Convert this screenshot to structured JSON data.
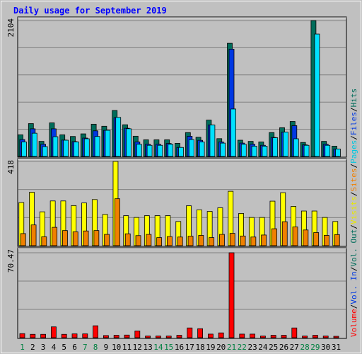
{
  "chart_data": {
    "type": "bar",
    "title": "Daily usage for September 2019",
    "categories": [
      "1",
      "2",
      "3",
      "4",
      "5",
      "6",
      "7",
      "8",
      "9",
      "10",
      "11",
      "12",
      "13",
      "14",
      "15",
      "16",
      "17",
      "18",
      "19",
      "20",
      "21",
      "22",
      "23",
      "24",
      "25",
      "26",
      "27",
      "28",
      "29",
      "30",
      "31"
    ],
    "weekend_days": [
      "1",
      "7",
      "8",
      "14",
      "15",
      "21",
      "22",
      "28",
      "29"
    ],
    "grid": true,
    "panels": [
      {
        "name": "hits-files-pages",
        "ytick_label": "2104",
        "ylim": [
          0,
          2104
        ],
        "series": [
          {
            "name": "Hits",
            "color": "#006c5a",
            "values": [
              335,
              509,
              234,
              520,
              335,
              310,
              350,
              500,
              468,
              712,
              491,
              314,
              258,
              258,
              258,
              204,
              370,
              297,
              563,
              276,
              1752,
              252,
              234,
              225,
              370,
              445,
              542,
              217,
              2104,
              234,
              160
            ]
          },
          {
            "name": "Files",
            "color": "#0038e2",
            "values": [
              262,
              428,
              189,
              428,
              254,
              230,
              285,
              397,
              405,
              600,
              437,
              225,
              189,
              189,
              201,
              140,
              313,
              250,
              487,
              225,
              1661,
              207,
              189,
              173,
              295,
              375,
              477,
              180,
              0,
              189,
              115
            ]
          },
          {
            "name": "Pages",
            "color": "#00e0ff",
            "values": [
              225,
              360,
              153,
              306,
              252,
              225,
              274,
              310,
              405,
              605,
              429,
              189,
              173,
              173,
              189,
              140,
              262,
              225,
              487,
              207,
              735,
              189,
              160,
              160,
              290,
              377,
              274,
              173,
              1895,
              173,
              115
            ]
          }
        ]
      },
      {
        "name": "visits-sites",
        "ytick_label": "418",
        "ylim": [
          0,
          418
        ],
        "series": [
          {
            "name": "Visits",
            "color": "#ffff00",
            "values": [
              214,
              265,
              168,
              222,
              222,
              199,
              212,
              229,
              155,
              418,
              149,
              140,
              149,
              149,
              149,
              120,
              198,
              178,
              170,
              188,
              270,
              160,
              140,
              140,
              221,
              263,
              195,
              172,
              172,
              140,
              120
            ]
          },
          {
            "name": "Sites",
            "color": "#f08000",
            "values": [
              60,
              103,
              44,
              91,
              75,
              69,
              73,
              75,
              56,
              233,
              59,
              50,
              56,
              40,
              45,
              43,
              47,
              51,
              40,
              56,
              61,
              48,
              43,
              53,
              84,
              119,
              93,
              78,
              65,
              51,
              55
            ]
          }
        ]
      },
      {
        "name": "volume",
        "ytick_label": "70.47",
        "ylim": [
          0,
          70.47
        ],
        "series": [
          {
            "name": "Volume",
            "color": "#ff0000",
            "values": [
              3.4,
              2.8,
              2.8,
              9.0,
              2.8,
              3.2,
              3.2,
              9.9,
              1.8,
              2.0,
              2.2,
              5.6,
              1.4,
              1.4,
              1.4,
              2.0,
              8.1,
              7.5,
              3.0,
              4.0,
              70.47,
              3.0,
              3.0,
              1.4,
              2.0,
              2.0,
              8.1,
              1.4,
              2.0,
              1.4,
              1.0
            ]
          }
        ]
      }
    ],
    "legend_entries": [
      {
        "label": "Volume",
        "color": "#ff0000"
      },
      {
        "label": "/",
        "color": "#000000"
      },
      {
        "label": "Vol. In",
        "color": "#0038e2"
      },
      {
        "label": "/",
        "color": "#000000"
      },
      {
        "label": "Vol. Out",
        "color": "#006c5a"
      },
      {
        "label": "/",
        "color": "#000000"
      },
      {
        "label": "Visits",
        "color": "#e8e800"
      },
      {
        "label": "/",
        "color": "#000000"
      },
      {
        "label": "Sites",
        "color": "#f08000"
      },
      {
        "label": "/",
        "color": "#000000"
      },
      {
        "label": "Pages",
        "color": "#00c8e0"
      },
      {
        "label": "/",
        "color": "#000000"
      },
      {
        "label": "Files",
        "color": "#0038e2"
      },
      {
        "label": "/",
        "color": "#000000"
      },
      {
        "label": "Hits",
        "color": "#006c5a"
      }
    ],
    "legend_placement": "right-vertical",
    "colors": {
      "background": "#c0c0c0",
      "title": "#0000ff",
      "weekday_label": "#000000",
      "weekend_label": "#008040"
    }
  }
}
